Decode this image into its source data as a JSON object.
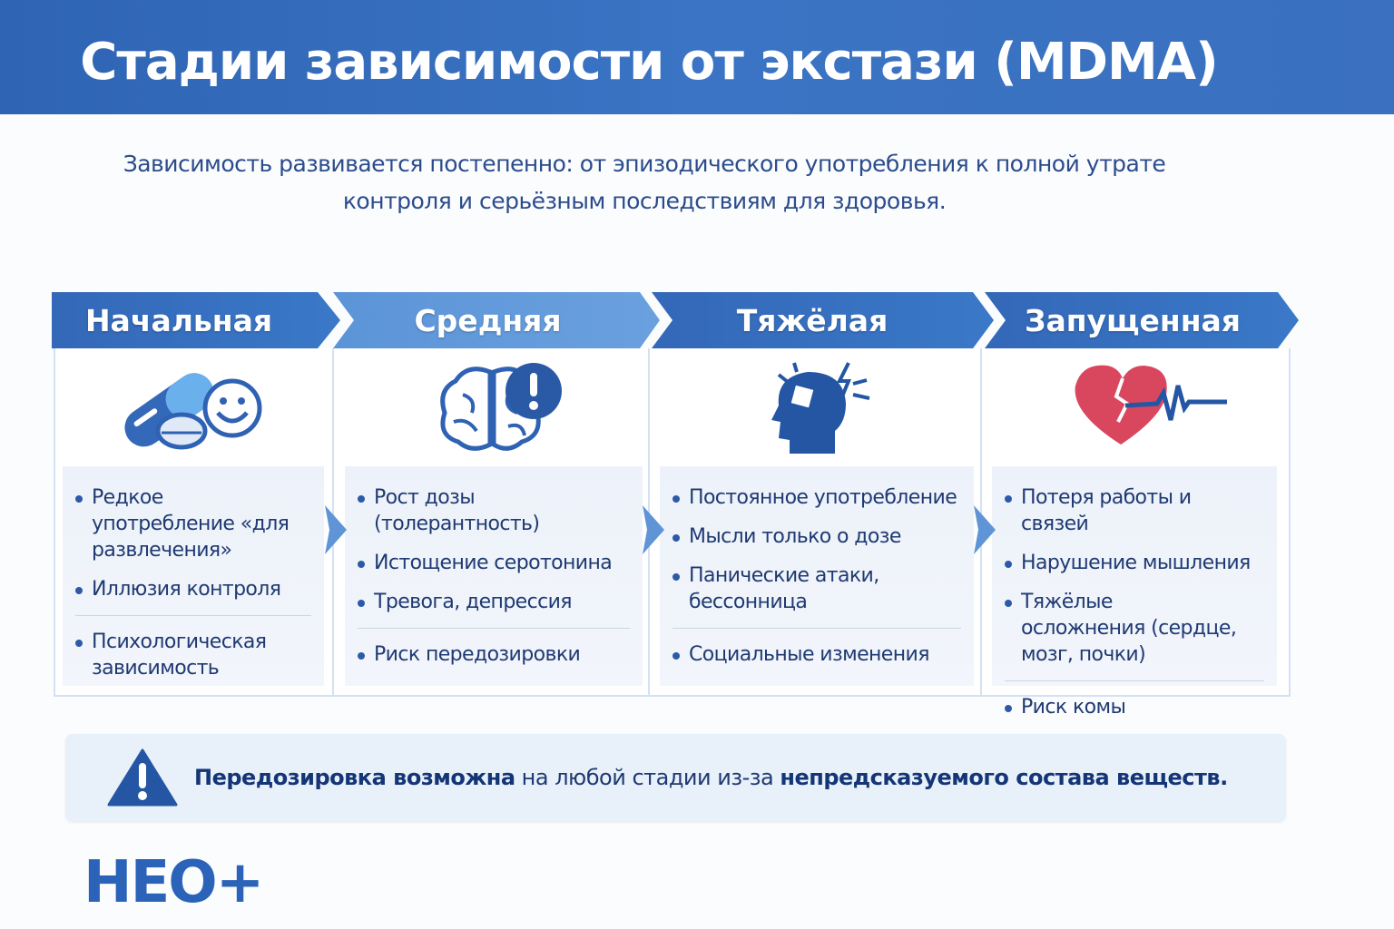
{
  "header": {
    "title": "Стадии зависимости от экстази (MDMA)"
  },
  "subtitle": {
    "line1": "Зависимость развивается постепенно: от эпизодического употребления к полной утрате",
    "line2": "контроля и серьёзным последствиям для здоровья."
  },
  "stages": [
    {
      "label": "Начальная",
      "icon": "pills-smiley-icon",
      "items": [
        "Редкое употребление «для развлечения»",
        "Иллюзия контроля",
        "Психологическая зависимость"
      ]
    },
    {
      "label": "Средняя",
      "icon": "brain-alert-icon",
      "items": [
        "Рост дозы (толерантность)",
        "Истощение серотонина",
        "Тревога, депрессия",
        "Риск передозировки"
      ]
    },
    {
      "label": "Тяжёлая",
      "icon": "head-puzzle-icon",
      "items": [
        "Постоянное употребление",
        "Мысли только о дозе",
        "Панические атаки, бессонница",
        "Социальные изменения"
      ]
    },
    {
      "label": "Запущенная",
      "icon": "broken-heart-pulse-icon",
      "items": [
        "Потеря работы и связей",
        "Нарушение мышления",
        "Тяжёлые осложнения (сердце, мозг, почки)",
        "Риск комы"
      ]
    }
  ],
  "warning": {
    "bold1": "Передозировка возможна",
    "normal": " на любой стадии из-за ",
    "bold2": "непредсказуемого состава веществ."
  },
  "logo": {
    "text": "НЕО+"
  },
  "colors": {
    "primary": "#3a70bf",
    "dark": "#1f3a72",
    "heart": "#d9475e"
  }
}
